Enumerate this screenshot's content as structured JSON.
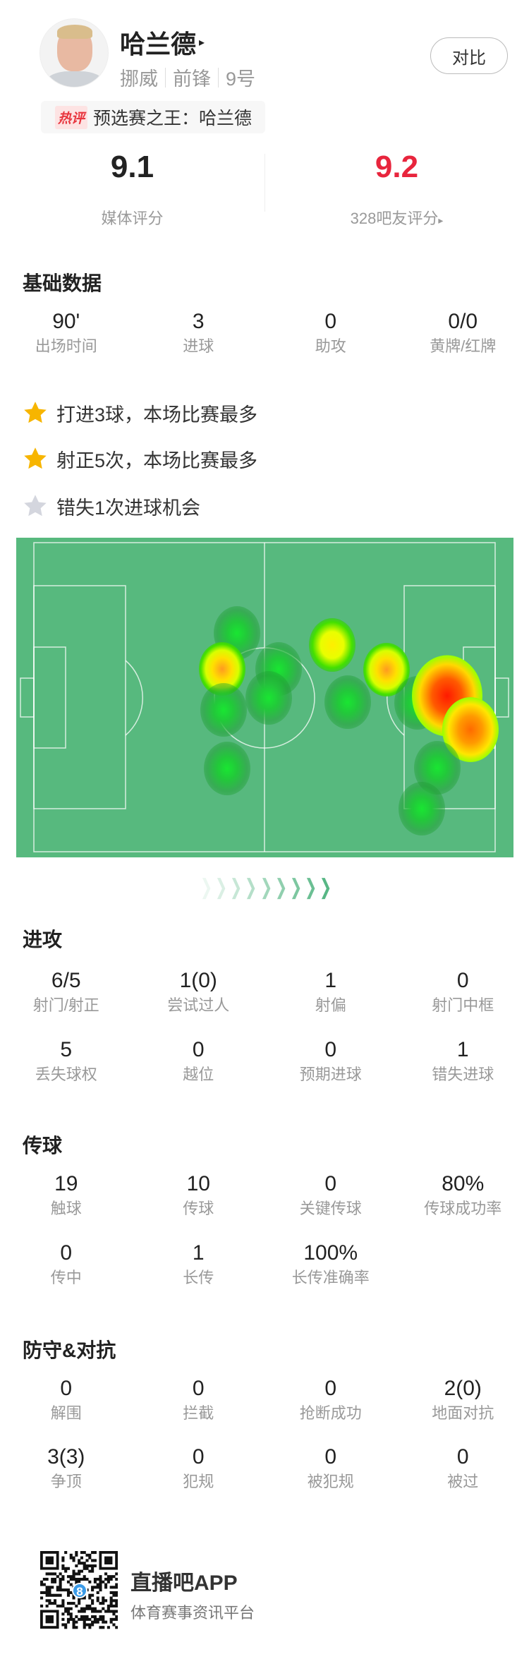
{
  "player": {
    "name": "哈兰德",
    "name_arrow": "▸",
    "country": "挪威",
    "position": "前锋",
    "number": "9号",
    "compare_label": "对比",
    "hot_tag": "热评",
    "hot_comment": "预选赛之王：哈兰德"
  },
  "ratings": {
    "media_value": "9.1",
    "media_label": "媒体评分",
    "fan_value": "9.2",
    "fan_label": "328吧友评分",
    "fan_arrow": "▸",
    "fan_color": "#e8253d"
  },
  "basic": {
    "title": "基础数据",
    "stats": [
      {
        "value": "90'",
        "label": "出场时间"
      },
      {
        "value": "3",
        "label": "进球"
      },
      {
        "value": "0",
        "label": "助攻"
      },
      {
        "value": "0/0",
        "label": "黄牌/红牌"
      }
    ],
    "highlights": [
      {
        "icon": "star-gold-icon",
        "text": "打进3球，本场比赛最多",
        "color": "#f7b500"
      },
      {
        "icon": "star-gold-icon",
        "text": "射正5次，本场比赛最多",
        "color": "#f7b500"
      },
      {
        "icon": "star-gray-icon",
        "text": "错失1次进球机会",
        "color": "#d4d6de"
      }
    ]
  },
  "heatmap": {
    "pitch_color": "#57b97e",
    "attack_direction": "right",
    "spots": [
      {
        "x": 44.0,
        "y": 29.2,
        "intensity": 0.3
      },
      {
        "x": 40.8,
        "y": 40.9,
        "intensity": 0.7
      },
      {
        "x": 53.1,
        "y": 40.9,
        "intensity": 0.3
      },
      {
        "x": 50.9,
        "y": 50.2,
        "intensity": 0.3
      },
      {
        "x": 41.1,
        "y": 54.1,
        "intensity": 0.3
      },
      {
        "x": 41.9,
        "y": 73.1,
        "intensity": 0.3
      },
      {
        "x": 64.7,
        "y": 33.1,
        "intensity": 0.6
      },
      {
        "x": 76.5,
        "y": 41.1,
        "intensity": 0.7
      },
      {
        "x": 68.0,
        "y": 51.6,
        "intensity": 0.3
      },
      {
        "x": 83.2,
        "y": 51.8,
        "intensity": 0.3
      },
      {
        "x": 89.6,
        "y": 49.5,
        "intensity": 1.0
      },
      {
        "x": 94.6,
        "y": 60.5,
        "intensity": 0.85
      },
      {
        "x": 87.5,
        "y": 72.8,
        "intensity": 0.3
      },
      {
        "x": 84.1,
        "y": 86.1,
        "intensity": 0.3
      }
    ]
  },
  "attack": {
    "title": "进攻",
    "rows": [
      [
        {
          "value": "6/5",
          "label": "射门/射正"
        },
        {
          "value": "1(0)",
          "label": "尝试过人"
        },
        {
          "value": "1",
          "label": "射偏"
        },
        {
          "value": "0",
          "label": "射门中框"
        }
      ],
      [
        {
          "value": "5",
          "label": "丢失球权"
        },
        {
          "value": "0",
          "label": "越位"
        },
        {
          "value": "0",
          "label": "预期进球"
        },
        {
          "value": "1",
          "label": "错失进球"
        }
      ]
    ]
  },
  "passing": {
    "title": "传球",
    "rows": [
      [
        {
          "value": "19",
          "label": "触球"
        },
        {
          "value": "10",
          "label": "传球"
        },
        {
          "value": "0",
          "label": "关键传球"
        },
        {
          "value": "80%",
          "label": "传球成功率"
        }
      ],
      [
        {
          "value": "0",
          "label": "传中"
        },
        {
          "value": "1",
          "label": "长传"
        },
        {
          "value": "100%",
          "label": "长传准确率"
        }
      ]
    ]
  },
  "defense": {
    "title": "防守&对抗",
    "rows": [
      [
        {
          "value": "0",
          "label": "解围"
        },
        {
          "value": "0",
          "label": "拦截"
        },
        {
          "value": "0",
          "label": "抢断成功"
        },
        {
          "value": "2(0)",
          "label": "地面对抗"
        }
      ],
      [
        {
          "value": "3(3)",
          "label": "争顶"
        },
        {
          "value": "0",
          "label": "犯规"
        },
        {
          "value": "0",
          "label": "被犯规"
        },
        {
          "value": "0",
          "label": "被过"
        }
      ]
    ]
  },
  "footer": {
    "app_name": "直播吧APP",
    "app_slogan": "体育赛事资讯平台",
    "qr_badge": "8"
  }
}
